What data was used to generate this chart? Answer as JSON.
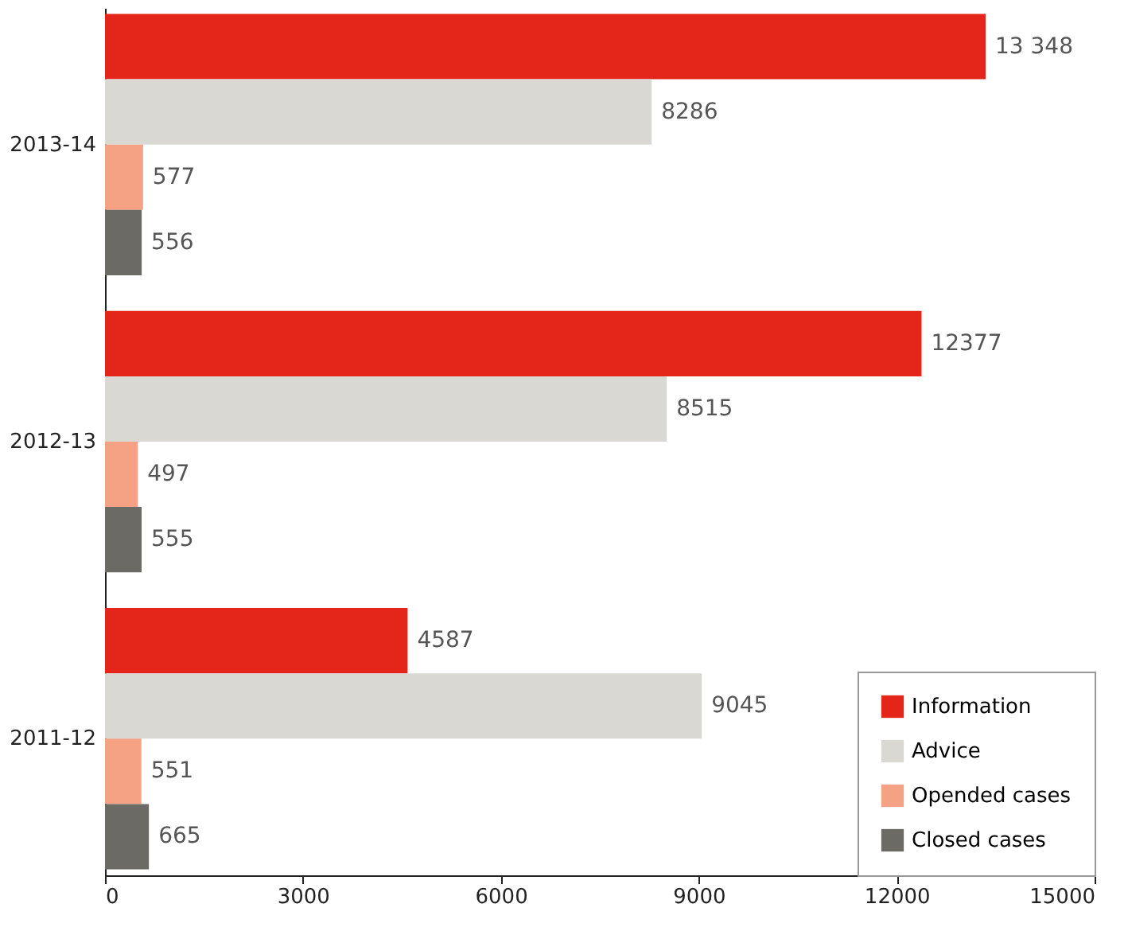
{
  "chart_data": {
    "type": "bar",
    "orientation": "horizontal",
    "categories": [
      "2013-14",
      "2012-13",
      "2011-12"
    ],
    "series": [
      {
        "name": "Information",
        "color": "#e32619",
        "values": [
          13348,
          12377,
          4587
        ],
        "value_labels": [
          "13 348",
          "12377",
          "4587"
        ]
      },
      {
        "name": "Advice",
        "color": "#d9d8d3",
        "values": [
          8286,
          8515,
          9045
        ],
        "value_labels": [
          "8286",
          "8515",
          "9045"
        ]
      },
      {
        "name": "Opended cases",
        "color": "#f4a283",
        "values": [
          577,
          497,
          551
        ],
        "value_labels": [
          "577",
          "497",
          "551"
        ]
      },
      {
        "name": "Closed cases",
        "color": "#6b6a64",
        "values": [
          556,
          555,
          665
        ],
        "value_labels": [
          "556",
          "555",
          "665"
        ]
      }
    ],
    "xlim": [
      0,
      15000
    ],
    "xticks": [
      0,
      3000,
      6000,
      9000,
      12000,
      15000
    ],
    "grid": false,
    "legend": "bottom right"
  }
}
